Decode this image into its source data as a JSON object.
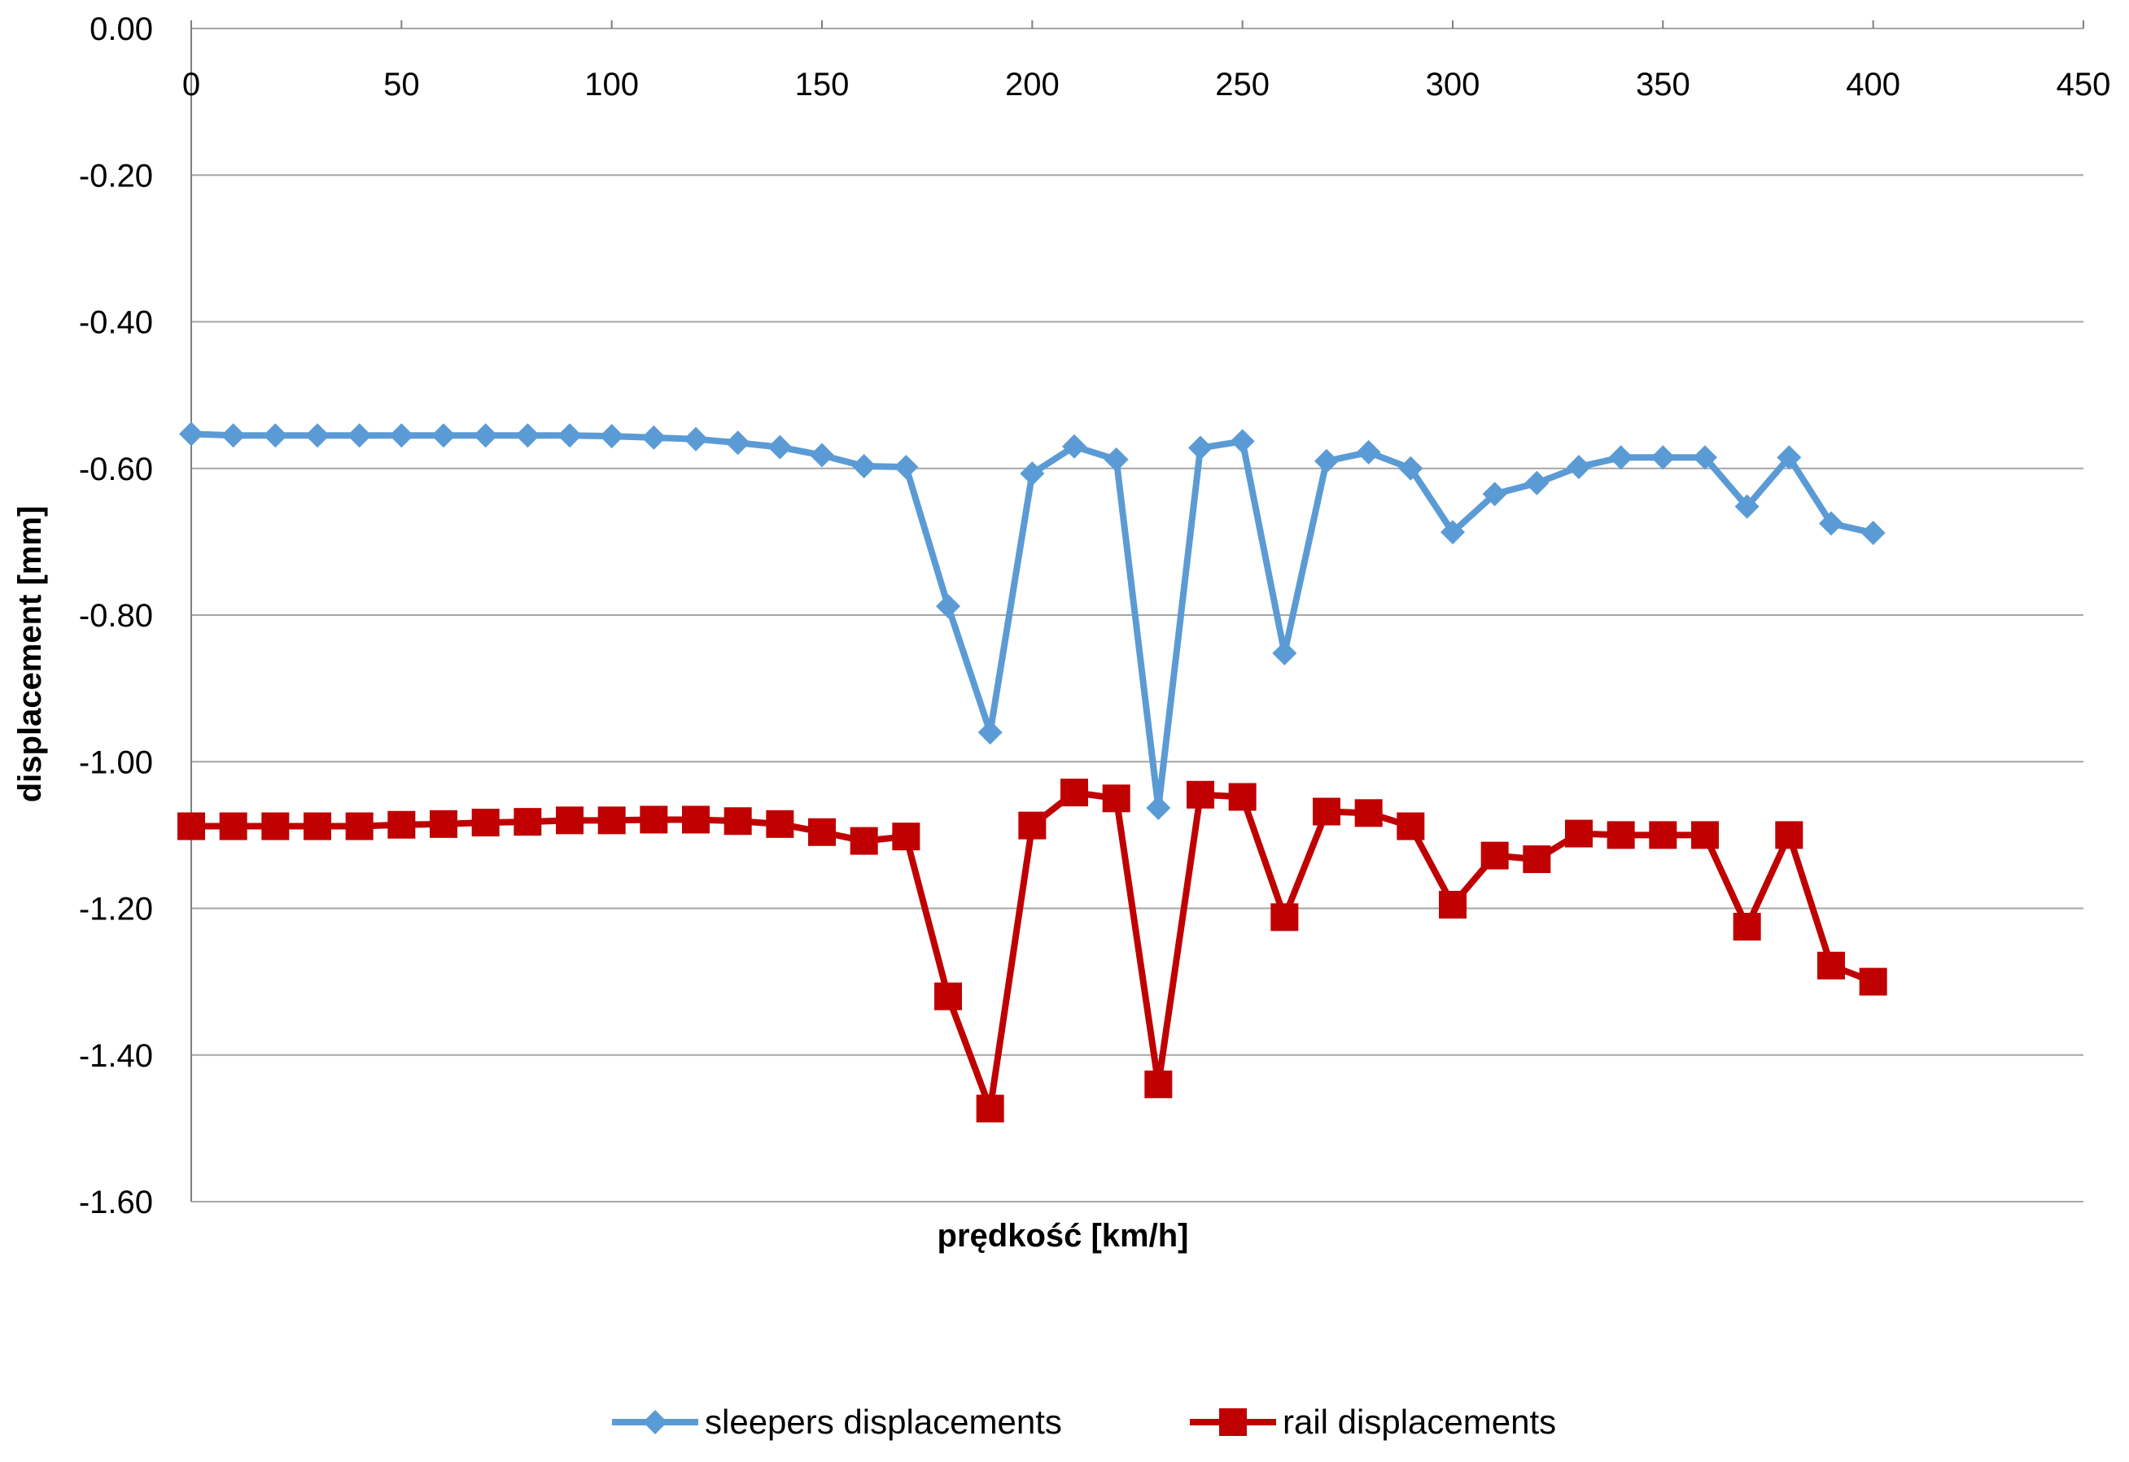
{
  "chart_data": {
    "type": "line",
    "xlabel": "prędkość [km/h]",
    "ylabel": "displacement [mm]",
    "xlim": [
      0,
      450
    ],
    "ylim": [
      -1.6,
      0.0
    ],
    "x_ticks": [
      0,
      50,
      100,
      150,
      200,
      250,
      300,
      350,
      400,
      450
    ],
    "y_ticks": [
      0.0,
      -0.2,
      -0.4,
      -0.6,
      -0.8,
      -1.0,
      -1.2,
      -1.4,
      -1.6
    ],
    "x_ticks_position": "top",
    "grid": true,
    "legend_position": "bottom",
    "x": [
      0,
      10,
      20,
      30,
      40,
      50,
      60,
      70,
      80,
      90,
      100,
      110,
      120,
      130,
      140,
      150,
      160,
      170,
      180,
      190,
      200,
      210,
      220,
      230,
      240,
      250,
      260,
      270,
      280,
      290,
      300,
      310,
      320,
      330,
      340,
      350,
      360,
      370,
      380,
      390,
      400
    ],
    "series": [
      {
        "name": "sleepers displacements",
        "color": "#5B9BD5",
        "marker": "diamond",
        "values": [
          -0.553,
          -0.555,
          -0.555,
          -0.555,
          -0.555,
          -0.555,
          -0.555,
          -0.555,
          -0.555,
          -0.555,
          -0.556,
          -0.558,
          -0.56,
          -0.565,
          -0.571,
          -0.582,
          -0.597,
          -0.598,
          -0.788,
          -0.96,
          -0.607,
          -0.57,
          -0.588,
          -1.063,
          -0.572,
          -0.563,
          -0.852,
          -0.59,
          -0.578,
          -0.6,
          -0.687,
          -0.635,
          -0.62,
          -0.598,
          -0.585,
          -0.585,
          -0.585,
          -0.652,
          -0.585,
          -0.675,
          -0.688
        ]
      },
      {
        "name": "rail displacements",
        "color": "#C00000",
        "marker": "square",
        "values": [
          -1.088,
          -1.088,
          -1.088,
          -1.088,
          -1.088,
          -1.086,
          -1.085,
          -1.083,
          -1.082,
          -1.08,
          -1.08,
          -1.079,
          -1.079,
          -1.081,
          -1.085,
          -1.096,
          -1.108,
          -1.102,
          -1.32,
          -1.473,
          -1.087,
          -1.042,
          -1.05,
          -1.44,
          -1.045,
          -1.048,
          -1.212,
          -1.068,
          -1.07,
          -1.088,
          -1.195,
          -1.128,
          -1.133,
          -1.098,
          -1.1,
          -1.1,
          -1.1,
          -1.225,
          -1.1,
          -1.278,
          -1.3
        ]
      }
    ]
  }
}
